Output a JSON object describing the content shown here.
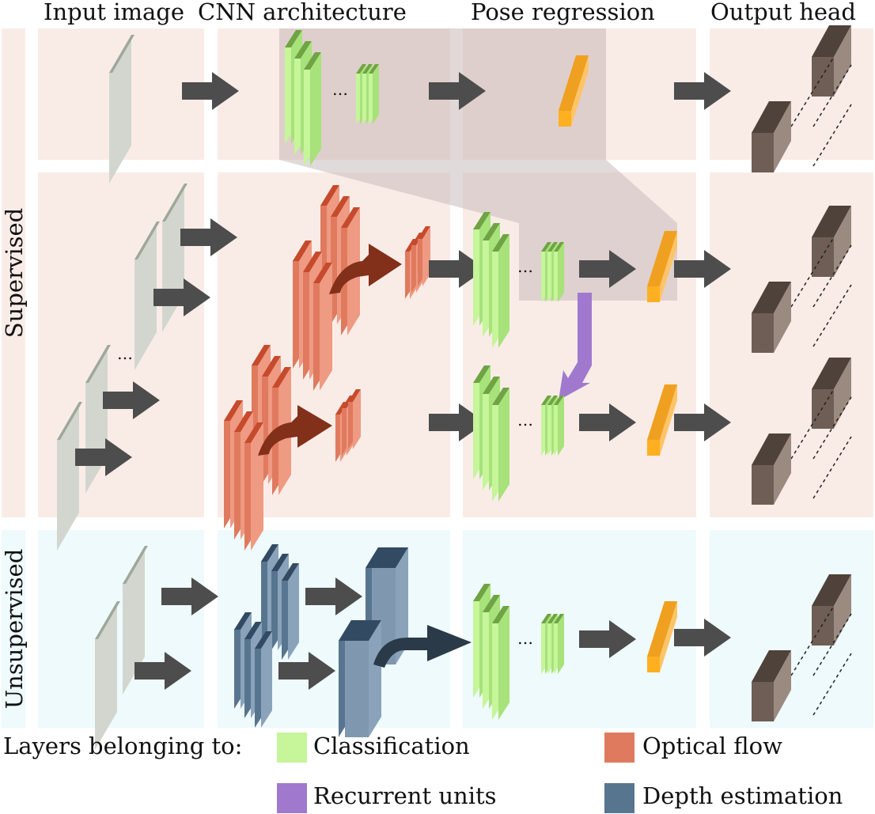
{
  "headers": {
    "input_image": "Input image",
    "cnn_architecture": "CNN architecture",
    "pose_regression": "Pose regression",
    "output_head": "Output head"
  },
  "rows": {
    "supervised": "Supervised",
    "unsupervised": "Unsupervised"
  },
  "legend": {
    "title": "Layers belonging to:",
    "items": [
      {
        "label": "Classification",
        "color": "#c6f59a"
      },
      {
        "label": "Optical flow",
        "color": "#e07a5f"
      },
      {
        "label": "Recurrent units",
        "color": "#a079cf"
      },
      {
        "label": "Depth estimation",
        "color": "#587590"
      }
    ]
  },
  "ellipsis": "…",
  "colors": {
    "supervised_bg": "#f9ece7",
    "unsupervised_bg": "#eefafb",
    "arrow": "#4d4d4d",
    "input_frame": "#d5d8d0",
    "pose_layer": "#f0a020",
    "output_box": "#6e5e55",
    "flow_arrow": "#82301a",
    "depth_arrow": "#2a3a48",
    "highlight": "#c8bcbc"
  }
}
